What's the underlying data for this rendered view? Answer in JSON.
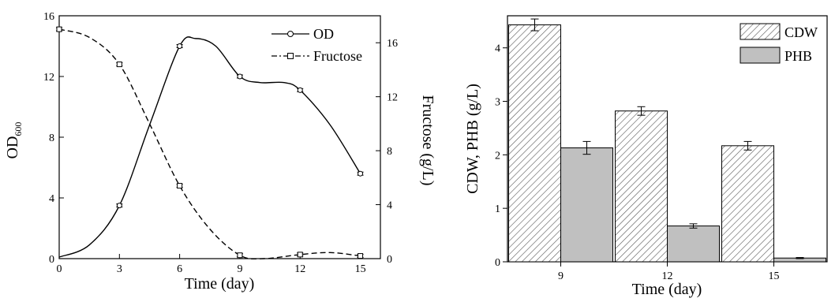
{
  "chart_data": [
    {
      "type": "line",
      "xlabel": "Time (day)",
      "ylabel": "OD",
      "ylabel_sub": "600",
      "y2label": "Fructose (g/L)",
      "xlim": [
        0,
        16
      ],
      "ylim": [
        0,
        16
      ],
      "y2lim": [
        0,
        18
      ],
      "x_ticks": [
        "0",
        "3",
        "6",
        "9",
        "12",
        "15"
      ],
      "y_ticks": [
        "0",
        "4",
        "8",
        "12",
        "16"
      ],
      "y2_ticks": [
        "0",
        "4",
        "8",
        "12",
        "16"
      ],
      "legend_position": "top-right",
      "legend": [
        "OD",
        "Fructose"
      ],
      "series": [
        {
          "name": "OD",
          "axis": "left",
          "marker": "circle",
          "line": "solid",
          "x": [
            3,
            6,
            9,
            12,
            15
          ],
          "values": [
            3.5,
            14.0,
            12.0,
            11.1,
            5.6
          ],
          "curve": [
            [
              0,
              0.1
            ],
            [
              1.5,
              0.9
            ],
            [
              3,
              3.5
            ],
            [
              4.5,
              8.8
            ],
            [
              6,
              14.0
            ],
            [
              6.8,
              14.5
            ],
            [
              7.8,
              14.0
            ],
            [
              9,
              12.0
            ],
            [
              10,
              11.6
            ],
            [
              11.2,
              11.6
            ],
            [
              12,
              11.1
            ],
            [
              13.5,
              8.8
            ],
            [
              15,
              5.6
            ]
          ]
        },
        {
          "name": "Fructose",
          "axis": "right",
          "marker": "square",
          "line": "dashed",
          "x": [
            0,
            3,
            6,
            9,
            12,
            15
          ],
          "values": [
            17.0,
            14.4,
            5.4,
            0.25,
            0.3,
            0.2
          ],
          "curve": [
            [
              0,
              17.0
            ],
            [
              1.5,
              16.4
            ],
            [
              3,
              14.4
            ],
            [
              4.5,
              10.0
            ],
            [
              6,
              5.4
            ],
            [
              7.5,
              2.2
            ],
            [
              9,
              0.25
            ],
            [
              10.2,
              0.0
            ],
            [
              12,
              0.3
            ],
            [
              13.5,
              0.45
            ],
            [
              15,
              0.2
            ]
          ]
        }
      ]
    },
    {
      "type": "bar",
      "xlabel": "Time (day)",
      "ylabel": "CDW, PHB (g/L)",
      "categories": [
        "9",
        "12",
        "15"
      ],
      "ylim": [
        0,
        4.6
      ],
      "y_ticks": [
        "0",
        "1",
        "2",
        "3",
        "4"
      ],
      "legend_position": "top-right",
      "legend": [
        "CDW",
        "PHB"
      ],
      "series": [
        {
          "name": "CDW",
          "pattern": "hatch",
          "values": [
            4.43,
            2.82,
            2.17
          ],
          "err": [
            0.11,
            0.08,
            0.08
          ]
        },
        {
          "name": "PHB",
          "pattern": "gray",
          "values": [
            2.13,
            0.67,
            0.07
          ],
          "err": [
            0.12,
            0.04,
            0.01
          ]
        }
      ]
    }
  ]
}
